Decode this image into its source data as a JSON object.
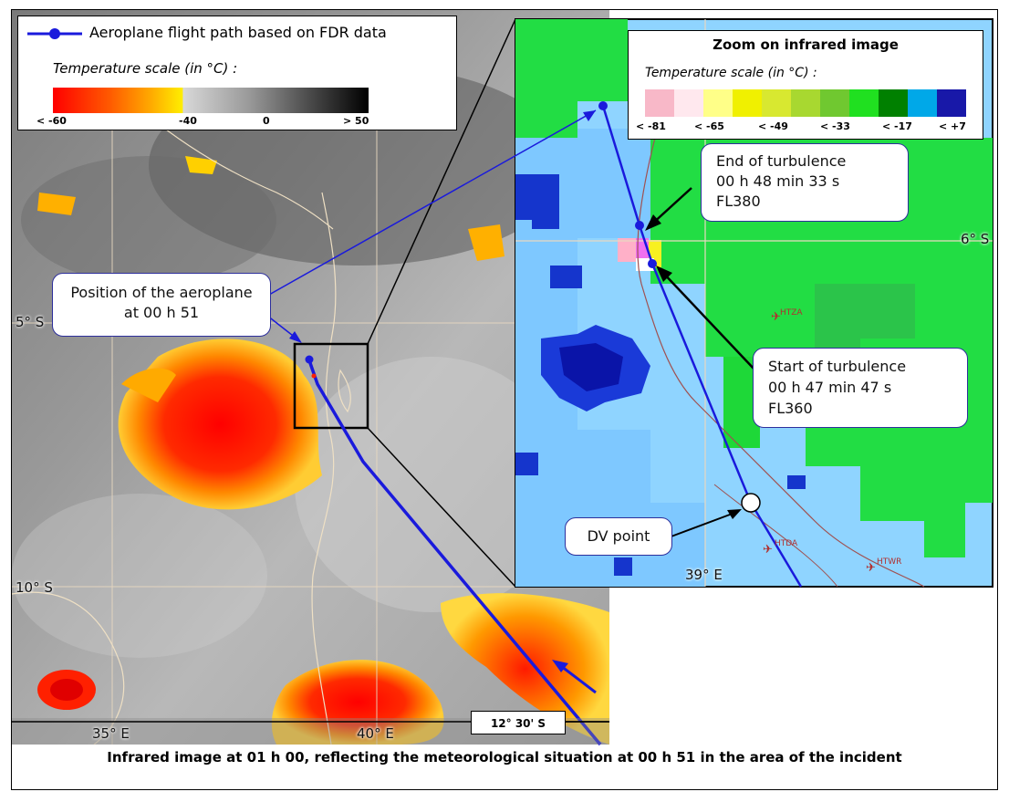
{
  "legend": {
    "path_label": "Aeroplane flight path based on FDR data",
    "scale_title": "Temperature scale (in °C) :",
    "ticks": [
      "< -60",
      "-40",
      "0",
      "> 50"
    ]
  },
  "zoom": {
    "title": "Zoom on infrared image",
    "scale_title": "Temperature scale (in °C) :",
    "swatch_colors": [
      "#f8b8c8",
      "#ffe8ee",
      "#ffff88",
      "#f0f000",
      "#d8e830",
      "#a8d830",
      "#70c830",
      "#20e020",
      "#008000",
      "#00a8e8",
      "#1818a8"
    ],
    "labels": [
      "< -81",
      "< -65",
      "< -49",
      "< -33",
      "< -17",
      "< +7"
    ],
    "lat_label": "6° S",
    "lon_label": "39° E",
    "airports": [
      "HTZA",
      "HTDA",
      "HTWR"
    ]
  },
  "annotations": {
    "position": {
      "line1": "Position of the aeroplane",
      "line2": "at 00 h 51"
    },
    "end_turb": {
      "line1": "End of turbulence",
      "line2": "00 h 48 min 33 s",
      "line3": "FL380"
    },
    "start_turb": {
      "line1": "Start of turbulence",
      "line2": "00 h 47 min 47 s",
      "line3": "FL360"
    },
    "dv": "DV point"
  },
  "coords": {
    "lat5": "5° S",
    "lat10": "10° S",
    "lon35": "35° E",
    "lon40": "40° E",
    "lat1230": "12° 30' S"
  },
  "caption": "Infrared image at 01 h 00, reflecting the meteorological situation at 00 h 51 in the area of the incident",
  "colors": {
    "path": "#1a1adc",
    "box_border": "#2d2f9c"
  }
}
